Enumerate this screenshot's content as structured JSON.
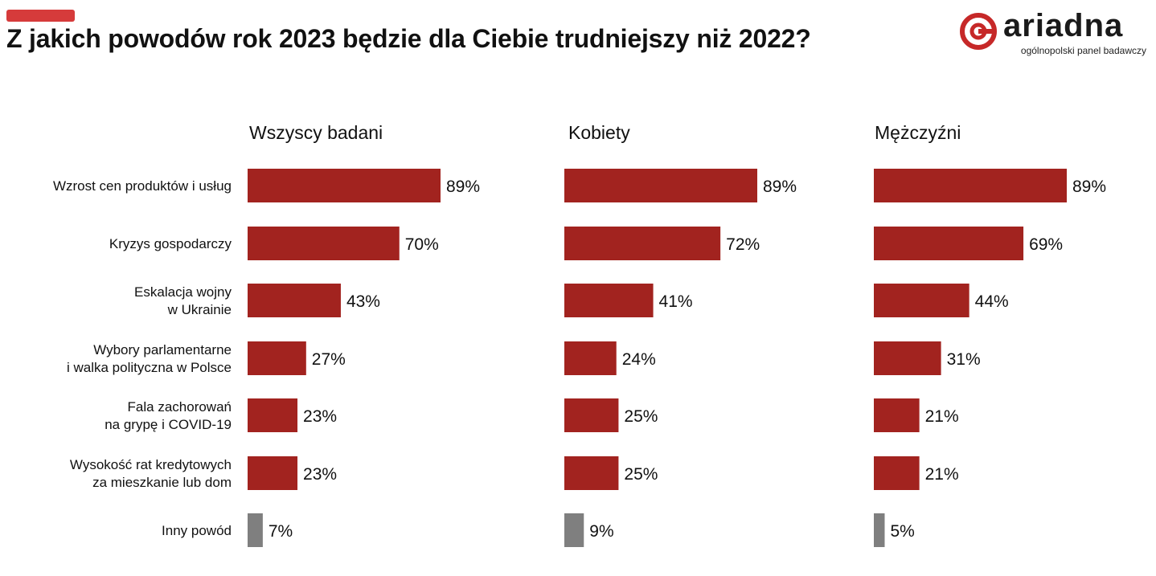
{
  "title": "Z jakich powodów rok 2023 będzie dla Ciebie trudniejszy niż 2022?",
  "logo": {
    "name": "ariadna",
    "subtitle": "ogólnopolski panel badawczy",
    "color": "#c62828"
  },
  "colors": {
    "accent": "#d63b3b",
    "bar": "#a2231f",
    "bar_other": "#7f7f7f"
  },
  "chart_data": {
    "type": "bar",
    "orientation": "horizontal",
    "categories": [
      "Wzrost cen produktów i usług",
      "Kryzys gospodarczy",
      "Eskalacja wojny\nw Ukrainie",
      "Wybory parlamentarne\ni walka polityczna w Polsce",
      "Fala zachorowań\nna grypę i COVID-19",
      "Wysokość rat kredytowych\nza mieszkanie lub dom",
      "Inny powód"
    ],
    "series": [
      {
        "name": "Wszyscy badani",
        "values": [
          89,
          70,
          43,
          27,
          23,
          23,
          7
        ]
      },
      {
        "name": "Kobiety",
        "values": [
          89,
          72,
          41,
          24,
          25,
          25,
          9
        ]
      },
      {
        "name": "Mężczyźni",
        "values": [
          89,
          69,
          44,
          31,
          21,
          21,
          5
        ]
      }
    ],
    "value_suffix": "%",
    "grid": false,
    "xlim": [
      0,
      100
    ]
  }
}
